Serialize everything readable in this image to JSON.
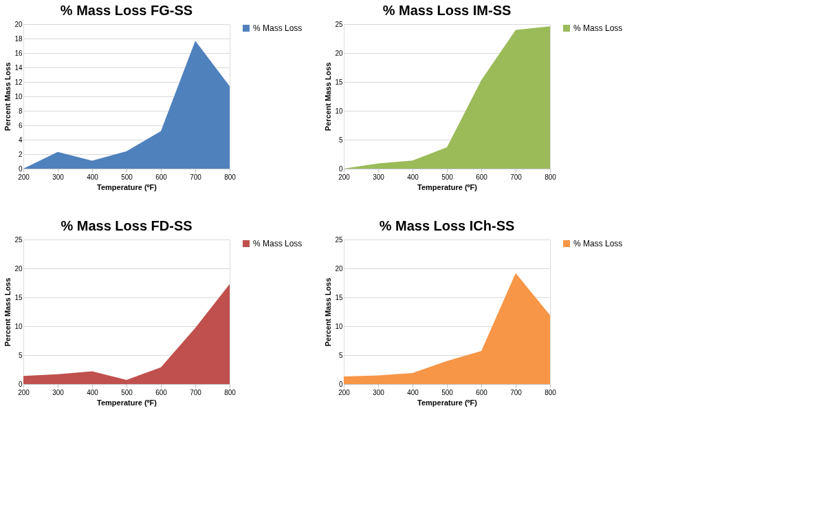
{
  "chart_data": [
    {
      "type": "area",
      "title": "% Mass Loss FG-SS",
      "xlabel": "Temperature (ºF)",
      "ylabel": "Percent Mass Loss",
      "x": [
        200,
        300,
        400,
        500,
        600,
        700,
        800
      ],
      "xlim": [
        200,
        800
      ],
      "xticks": [
        200,
        300,
        400,
        500,
        600,
        700,
        800
      ],
      "ylim": [
        0,
        20
      ],
      "yticks": [
        0,
        2,
        4,
        6,
        8,
        10,
        12,
        14,
        16,
        18,
        20
      ],
      "grid": "y",
      "legend": "right",
      "series": [
        {
          "name": "% Mass Loss",
          "color": "#4f81bd",
          "values": [
            0,
            2.3,
            1.1,
            2.4,
            5.2,
            17.7,
            11.4
          ]
        }
      ]
    },
    {
      "type": "area",
      "title": "% Mass Loss IM-SS",
      "xlabel": "Temperature (ºF)",
      "ylabel": "Percent Mass Loss",
      "x": [
        200,
        300,
        400,
        500,
        600,
        700,
        800
      ],
      "xlim": [
        200,
        800
      ],
      "xticks": [
        200,
        300,
        400,
        500,
        600,
        700,
        800
      ],
      "ylim": [
        0,
        25
      ],
      "yticks": [
        0,
        5,
        10,
        15,
        20,
        25
      ],
      "grid": "y",
      "legend": "right",
      "series": [
        {
          "name": "% Mass Loss",
          "color": "#9bbb59",
          "values": [
            0,
            0.9,
            1.4,
            3.7,
            15.3,
            24.0,
            24.6
          ]
        }
      ]
    },
    {
      "type": "area",
      "title": "% Mass Loss FD-SS",
      "xlabel": "Temperature (ºF)",
      "ylabel": "Percent Mass Loss",
      "x": [
        200,
        300,
        400,
        500,
        600,
        700,
        800
      ],
      "xlim": [
        200,
        800
      ],
      "xticks": [
        200,
        300,
        400,
        500,
        600,
        700,
        800
      ],
      "ylim": [
        0,
        25
      ],
      "yticks": [
        0,
        5,
        10,
        15,
        20,
        25
      ],
      "grid": "y",
      "legend": "right",
      "series": [
        {
          "name": "% Mass Loss",
          "color": "#c0504d",
          "values": [
            1.4,
            1.7,
            2.2,
            0.7,
            2.9,
            9.7,
            17.3
          ]
        }
      ]
    },
    {
      "type": "area",
      "title": "% Mass Loss ICh-SS",
      "xlabel": "Temperature (ºF)",
      "ylabel": "Percent Mass Loss",
      "x": [
        200,
        300,
        400,
        500,
        600,
        700,
        800
      ],
      "xlim": [
        200,
        800
      ],
      "xticks": [
        200,
        300,
        400,
        500,
        600,
        700,
        800
      ],
      "ylim": [
        0,
        25
      ],
      "yticks": [
        0,
        5,
        10,
        15,
        20,
        25
      ],
      "grid": "y",
      "legend": "right",
      "series": [
        {
          "name": "% Mass Loss",
          "color": "#f79646",
          "values": [
            1.3,
            1.5,
            1.9,
            4.0,
            5.7,
            19.2,
            11.9
          ]
        }
      ]
    }
  ]
}
